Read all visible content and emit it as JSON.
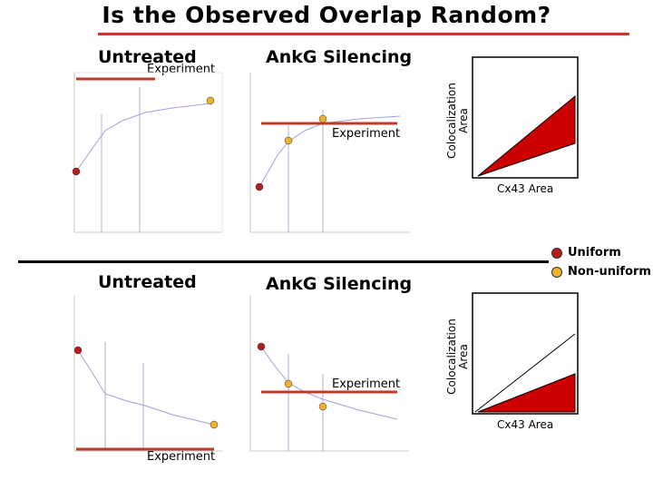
{
  "title": "Is the Observed Overlap Random?",
  "colors": {
    "accent_line": "#c0392b",
    "uniform_dot": "#b71c1c",
    "nonuniform_dot": "#f0b030",
    "fill": "#cc0000"
  },
  "top": {
    "left_label": "Untreated",
    "left_experiment": "Experiment",
    "right_label": "AnkG Silencing",
    "right_experiment": "Experiment"
  },
  "bottom": {
    "left_label": "Untreated",
    "left_experiment": "Experiment",
    "right_label": "AnkG Silencing",
    "right_experiment": "Experiment"
  },
  "diagram_top": {
    "ylabel_line1": "Colocalization",
    "ylabel_line2": "Area",
    "xlabel": "Cx43 Area"
  },
  "diagram_bottom": {
    "ylabel_line1": "Colocalization",
    "ylabel_line2": "Area",
    "xlabel": "Cx43 Area"
  },
  "legend": {
    "uniform": "Uniform",
    "nonuniform": "Non-uniform"
  }
}
